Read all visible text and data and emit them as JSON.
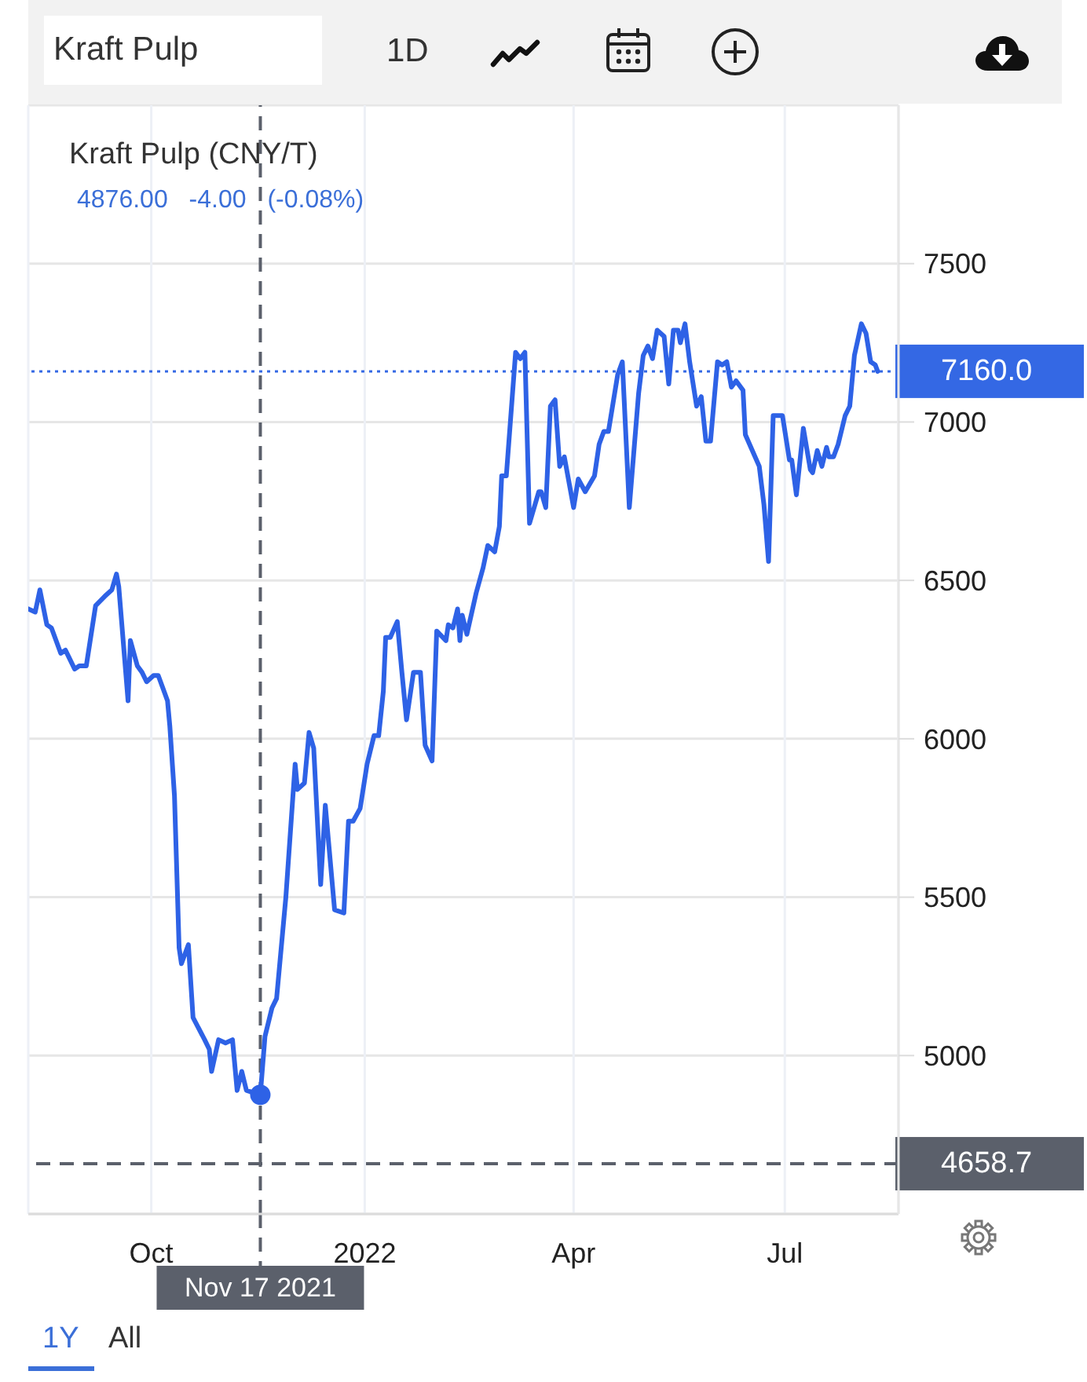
{
  "chart_data": {
    "type": "line",
    "title": "Kraft Pulp (CNY/T)",
    "subtitle": "4876.00 -4.00 (-0.08%)",
    "annotations": [
      "Kraft Pulp",
      "1D",
      "1Y",
      "All"
    ],
    "x": [
      "2021-08-09",
      "2021-08-12",
      "2021-08-14",
      "2021-08-17",
      "2021-08-19",
      "2021-08-23",
      "2021-08-25",
      "2021-08-29",
      "2021-08-31",
      "2021-09-03",
      "2021-09-07",
      "2021-09-11",
      "2021-09-14",
      "2021-09-16",
      "2021-09-17",
      "2021-09-21",
      "2021-09-22",
      "2021-09-25",
      "2021-09-27",
      "2021-09-29",
      "2021-10-02",
      "2021-10-04",
      "2021-10-06",
      "2021-10-08",
      "2021-10-09",
      "2021-10-11",
      "2021-10-13",
      "2021-10-14",
      "2021-10-17",
      "2021-10-19",
      "2021-10-24",
      "2021-10-26",
      "2021-10-27",
      "2021-10-30",
      "2021-11-02",
      "2021-11-05",
      "2021-11-07",
      "2021-11-09",
      "2021-11-11",
      "2021-11-17",
      "2021-11-19",
      "2021-11-22",
      "2021-11-24",
      "2021-11-28",
      "2021-12-02",
      "2021-12-03",
      "2021-12-06",
      "2021-12-08",
      "2021-12-10",
      "2021-12-13",
      "2021-12-15",
      "2021-12-19",
      "2021-12-23",
      "2021-12-25",
      "2021-12-27",
      "2021-12-30",
      "2022-01-02",
      "2022-01-05",
      "2022-01-07",
      "2022-01-09",
      "2022-01-10",
      "2022-01-12",
      "2022-01-15",
      "2022-01-17",
      "2022-01-19",
      "2022-01-22",
      "2022-01-25",
      "2022-01-27",
      "2022-01-30",
      "2022-02-01",
      "2022-02-05",
      "2022-02-06",
      "2022-02-08",
      "2022-02-10",
      "2022-02-11",
      "2022-02-12",
      "2022-02-14",
      "2022-02-18",
      "2022-02-21",
      "2022-02-23",
      "2022-02-26",
      "2022-02-28",
      "2022-03-01",
      "2022-03-03",
      "2022-03-07",
      "2022-03-09",
      "2022-03-11",
      "2022-03-13",
      "2022-03-17",
      "2022-03-18",
      "2022-03-20",
      "2022-03-22",
      "2022-03-24",
      "2022-03-26",
      "2022-03-28",
      "2022-04-01",
      "2022-04-03",
      "2022-04-06",
      "2022-04-10",
      "2022-04-12",
      "2022-04-14",
      "2022-04-16",
      "2022-04-18",
      "2022-04-20",
      "2022-04-22",
      "2022-04-25",
      "2022-04-29",
      "2022-05-01",
      "2022-05-03",
      "2022-05-05",
      "2022-05-07",
      "2022-05-10",
      "2022-05-12",
      "2022-05-14",
      "2022-05-16",
      "2022-05-17",
      "2022-05-19",
      "2022-05-21",
      "2022-05-24",
      "2022-05-26",
      "2022-05-28",
      "2022-05-30",
      "2022-06-02",
      "2022-06-04",
      "2022-06-06",
      "2022-06-08",
      "2022-06-10",
      "2022-06-13",
      "2022-06-14",
      "2022-06-17",
      "2022-06-20",
      "2022-06-22",
      "2022-06-24",
      "2022-06-26",
      "2022-06-30",
      "2022-07-03",
      "2022-07-04",
      "2022-07-06",
      "2022-07-09",
      "2022-07-12",
      "2022-07-13",
      "2022-07-15",
      "2022-07-17",
      "2022-07-19",
      "2022-07-20",
      "2022-07-22",
      "2022-07-24",
      "2022-07-27",
      "2022-07-29",
      "2022-07-31",
      "2022-08-03",
      "2022-08-05",
      "2022-08-07",
      "2022-08-09",
      "2022-08-10"
    ],
    "series": [
      {
        "color": "#2e62e6",
        "values": [
          6410,
          6400,
          6470,
          6360,
          6350,
          6270,
          6280,
          6220,
          6230,
          6230,
          6420,
          6450,
          6470,
          6520,
          6480,
          6120,
          6310,
          6230,
          6210,
          6180,
          6200,
          6200,
          6160,
          6120,
          6040,
          5820,
          5340,
          5290,
          5350,
          5120,
          5050,
          5020,
          4950,
          5050,
          5040,
          5050,
          4890,
          4950,
          4890,
          4876,
          5060,
          5150,
          5180,
          5500,
          5920,
          5840,
          5860,
          6020,
          5970,
          5540,
          5790,
          5460,
          5450,
          5740,
          5740,
          5780,
          5920,
          6010,
          6010,
          6150,
          6320,
          6320,
          6370,
          6210,
          6060,
          6210,
          6210,
          5980,
          5930,
          6340,
          6310,
          6360,
          6350,
          6410,
          6310,
          6390,
          6330,
          6460,
          6540,
          6610,
          6590,
          6670,
          6830,
          6830,
          7220,
          7200,
          7220,
          6680,
          6780,
          6780,
          6730,
          7050,
          7070,
          6860,
          6890,
          6730,
          6820,
          6780,
          6830,
          6930,
          6970,
          6970,
          7060,
          7150,
          7190,
          6730,
          7090,
          7210,
          7240,
          7200,
          7290,
          7270,
          7120,
          7290,
          7290,
          7250,
          7310,
          7190,
          7050,
          7080,
          6940,
          6940,
          7190,
          7180,
          7190,
          7110,
          7130,
          7100,
          6960,
          6910,
          6860,
          6740,
          6560,
          7020,
          7020,
          6880,
          6880,
          6770,
          6980,
          6850,
          6840,
          6910,
          6860,
          6920,
          6890,
          6890,
          6930,
          7020,
          7050,
          7210,
          7310,
          7280,
          7190,
          7180,
          7160
        ]
      },
      {
        "type": "scatter",
        "color": "#2e62e6",
        "x": [
          "2021-11-17"
        ],
        "values": [
          4876
        ]
      }
    ],
    "xlim": [
      "2021-08-09",
      "2022-08-19"
    ],
    "xticks": [
      {
        "value": "2021-10-01",
        "label": "Oct"
      },
      {
        "value": "2022-01-01",
        "label": "2022"
      },
      {
        "value": "2022-04-01",
        "label": "Apr"
      },
      {
        "value": "2022-07-01",
        "label": "Jul"
      }
    ],
    "ylim": [
      4500,
      8000
    ],
    "yticks": [
      5000,
      5500,
      6000,
      6500,
      7000,
      7500
    ],
    "grid": true,
    "ref_lines": [
      {
        "axis": "y",
        "value": 7160,
        "label": "7160.0",
        "color": "#3468e4",
        "line_style": "dotted"
      },
      {
        "axis": "y",
        "value": 4658.7,
        "label": "4658.7",
        "color": "#5b606b",
        "line_style": "dashed"
      },
      {
        "axis": "x",
        "value": "2021-11-17",
        "label": "Nov 17 2021",
        "color": "#5b606b",
        "line_style": "dashed"
      }
    ]
  }
}
